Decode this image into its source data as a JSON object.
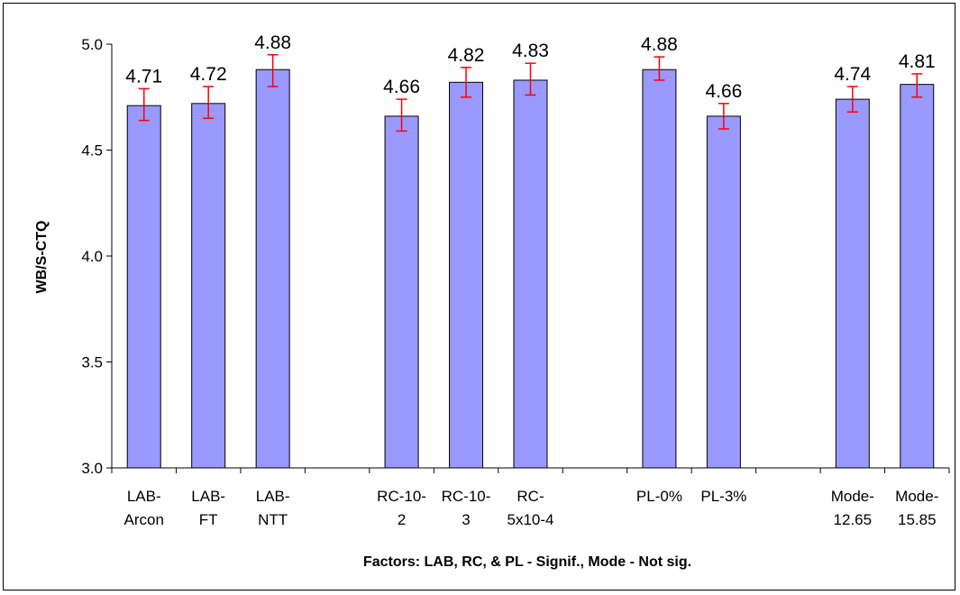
{
  "chart_data": {
    "type": "bar",
    "title": "",
    "xlabel": "Factors: LAB, RC, & PL - Signif., Mode - Not sig.",
    "ylabel": "WB/S-CTQ",
    "ylim": [
      3.0,
      5.0
    ],
    "yticks": [
      "3.0",
      "3.5",
      "4.0",
      "4.5",
      "5.0"
    ],
    "grid": false,
    "legend": "none",
    "bar_color": "#9999FF",
    "error_bar_color": "#FF0000",
    "slots": [
      {
        "lines": [
          "LAB-",
          "Arcon"
        ],
        "value": 4.71,
        "label": "4.71",
        "err_low": 4.64,
        "err_high": 4.79
      },
      {
        "lines": [
          "LAB-",
          "FT"
        ],
        "value": 4.72,
        "label": "4.72",
        "err_low": 4.65,
        "err_high": 4.8
      },
      {
        "lines": [
          "LAB-",
          "NTT"
        ],
        "value": 4.88,
        "label": "4.88",
        "err_low": 4.8,
        "err_high": 4.95
      },
      {
        "lines": [],
        "value": null,
        "label": "",
        "err_low": null,
        "err_high": null
      },
      {
        "lines": [
          "RC-10-",
          "2"
        ],
        "value": 4.66,
        "label": "4.66",
        "err_low": 4.59,
        "err_high": 4.74
      },
      {
        "lines": [
          "RC-10-",
          "3"
        ],
        "value": 4.82,
        "label": "4.82",
        "err_low": 4.75,
        "err_high": 4.89
      },
      {
        "lines": [
          "RC-",
          "5x10-4"
        ],
        "value": 4.83,
        "label": "4.83",
        "err_low": 4.76,
        "err_high": 4.91
      },
      {
        "lines": [],
        "value": null,
        "label": "",
        "err_low": null,
        "err_high": null
      },
      {
        "lines": [
          "PL-0%"
        ],
        "value": 4.88,
        "label": "4.88",
        "err_low": 4.83,
        "err_high": 4.94
      },
      {
        "lines": [
          "PL-3%"
        ],
        "value": 4.66,
        "label": "4.66",
        "err_low": 4.6,
        "err_high": 4.72
      },
      {
        "lines": [],
        "value": null,
        "label": "",
        "err_low": null,
        "err_high": null
      },
      {
        "lines": [
          "Mode-",
          "12.65"
        ],
        "value": 4.74,
        "label": "4.74",
        "err_low": 4.68,
        "err_high": 4.8
      },
      {
        "lines": [
          "Mode-",
          "15.85"
        ],
        "value": 4.81,
        "label": "4.81",
        "err_low": 4.75,
        "err_high": 4.86
      }
    ]
  }
}
